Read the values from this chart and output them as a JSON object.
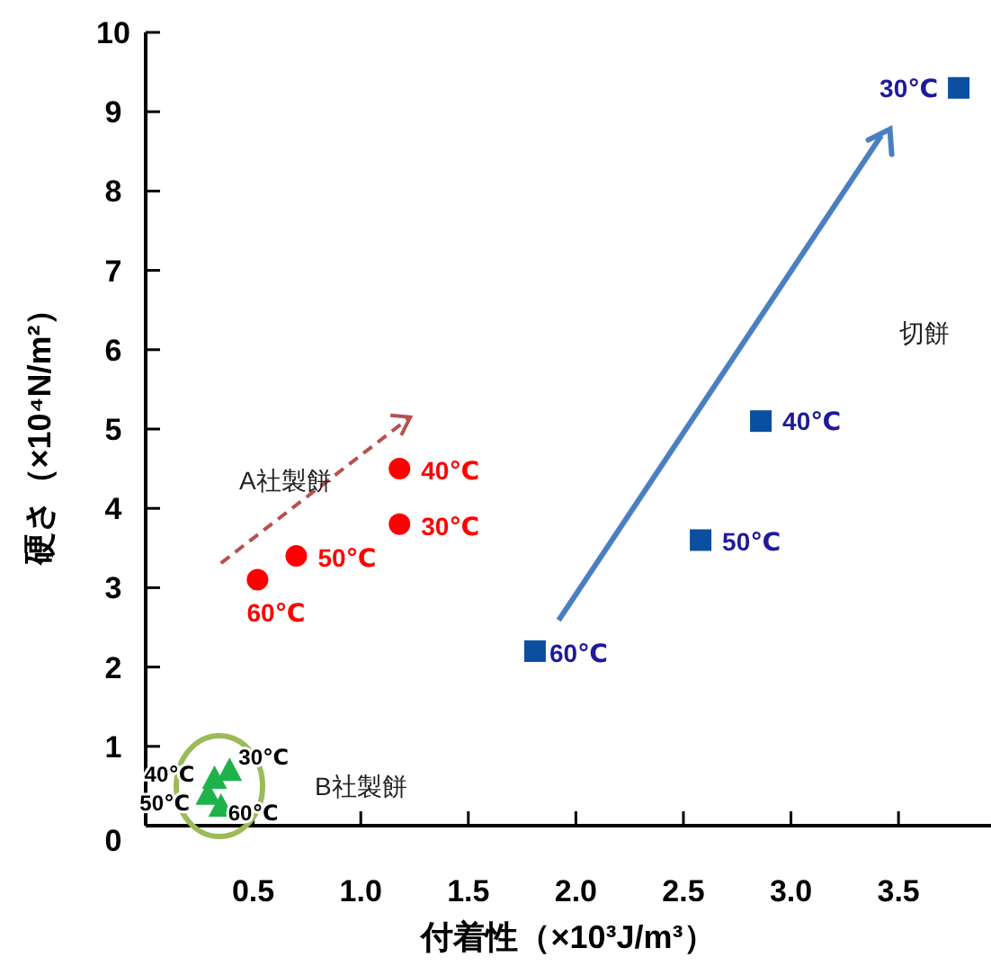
{
  "chart_data": {
    "type": "scatter",
    "xlabel": "付着性（×10³J/m³）",
    "ylabel": "硬さ（×10⁴N/m²）",
    "xlim": [
      0,
      3.93
    ],
    "ylim": [
      0,
      10
    ],
    "xticks": [
      {
        "value": 0.5,
        "label": "0.5"
      },
      {
        "value": 1,
        "label": "1.0"
      },
      {
        "value": 1.5,
        "label": "1.5"
      },
      {
        "value": 2,
        "label": "2.0"
      },
      {
        "value": 2.5,
        "label": "2.5"
      },
      {
        "value": 3,
        "label": "3.0"
      },
      {
        "value": 3.5,
        "label": "3.5"
      }
    ],
    "yticks": [
      0,
      1,
      2,
      3,
      4,
      5,
      6,
      7,
      8,
      9,
      10
    ],
    "grid": false,
    "series": [
      {
        "color": "#0b4fa0",
        "marker": "square",
        "x": [
          3.78,
          2.86,
          2.58,
          1.81
        ],
        "values": [
          9.3,
          5.1,
          3.6,
          2.2
        ]
      },
      {
        "color": "#ff0000",
        "marker": "circle",
        "x": [
          1.18,
          1.18,
          0.7,
          0.52
        ],
        "values": [
          3.8,
          4.5,
          3.4,
          3.1
        ]
      },
      {
        "color": "#1db34a",
        "marker": "triangle",
        "x": [
          0.39,
          0.32,
          0.29,
          0.35
        ],
        "values": [
          0.7,
          0.6,
          0.4,
          0.25
        ]
      }
    ],
    "annotations": [
      "切餅",
      "A社製餅",
      "B社製餅",
      {
        "text": "30℃",
        "x": 3.78,
        "y": 9.3
      },
      {
        "text": "40℃",
        "x": 2.86,
        "y": 5.1
      },
      {
        "text": "50℃",
        "x": 2.58,
        "y": 3.6
      },
      {
        "text": "60℃",
        "x": 1.81,
        "y": 2.2
      },
      {
        "text": "30℃",
        "x": 1.18,
        "y": 3.8
      },
      {
        "text": "40℃",
        "x": 1.18,
        "y": 4.5
      },
      {
        "text": "50℃",
        "x": 0.7,
        "y": 3.4
      },
      {
        "text": "60℃",
        "x": 0.52,
        "y": 3.1
      },
      {
        "text": "30℃",
        "x": 0.39,
        "y": 0.7
      },
      {
        "text": "40℃",
        "x": 0.32,
        "y": 0.6
      },
      {
        "text": "50℃",
        "x": 0.29,
        "y": 0.4
      },
      {
        "text": "60℃",
        "x": 0.35,
        "y": 0.25
      }
    ]
  }
}
